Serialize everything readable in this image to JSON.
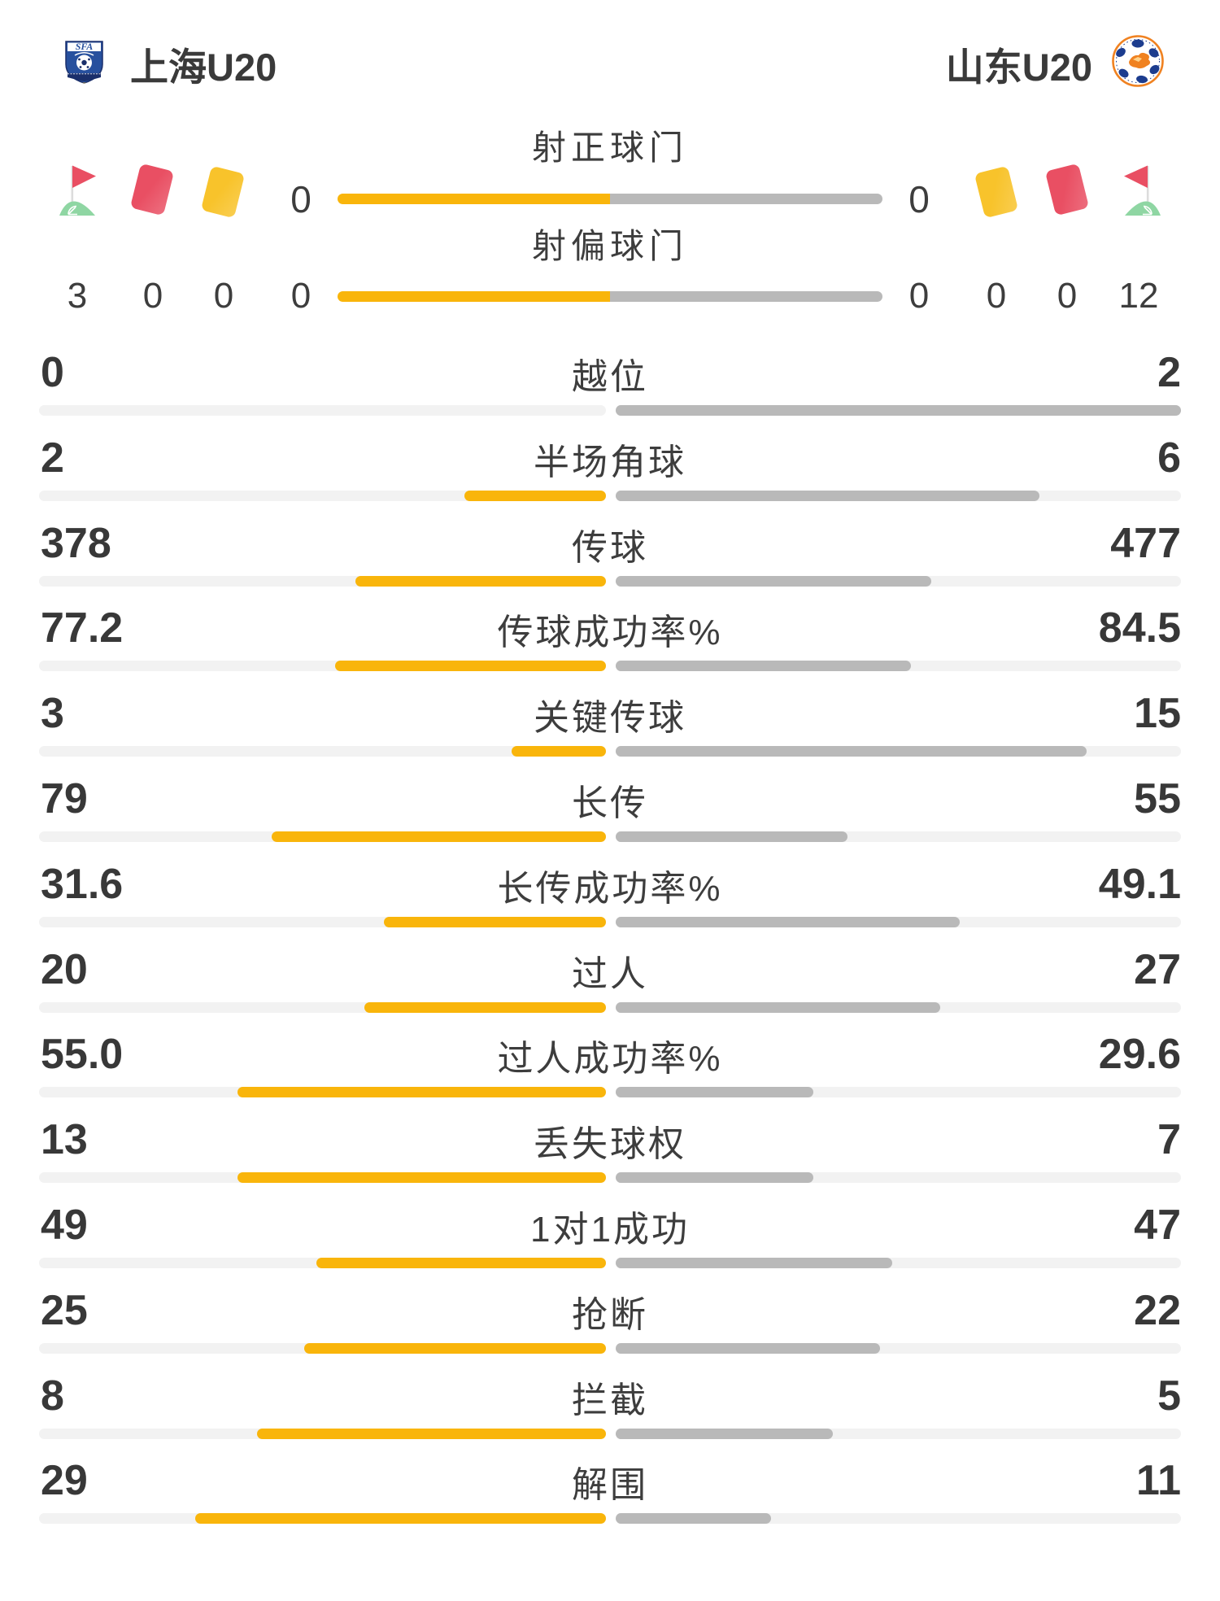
{
  "header": {
    "home_team": "上海U20",
    "away_team": "山东U20",
    "home_logo": "sfa-shield-logo",
    "away_logo": "shandong-fa-badge-logo"
  },
  "discipline": {
    "home": {
      "corner_flag": "3",
      "red_card": "0",
      "yellow_card": "0"
    },
    "away": {
      "yellow_card": "0",
      "red_card": "0",
      "corner_flag": "12"
    }
  },
  "shots": [
    {
      "label": "射正球门",
      "home": "0",
      "away": "0"
    },
    {
      "label": "射偏球门",
      "home": "0",
      "away": "0"
    }
  ],
  "stats": [
    {
      "label": "越位",
      "home": "0",
      "away": "2"
    },
    {
      "label": "半场角球",
      "home": "2",
      "away": "6"
    },
    {
      "label": "传球",
      "home": "378",
      "away": "477"
    },
    {
      "label": "传球成功率%",
      "home": "77.2",
      "away": "84.5"
    },
    {
      "label": "关键传球",
      "home": "3",
      "away": "15"
    },
    {
      "label": "长传",
      "home": "79",
      "away": "55"
    },
    {
      "label": "长传成功率%",
      "home": "31.6",
      "away": "49.1"
    },
    {
      "label": "过人",
      "home": "20",
      "away": "27"
    },
    {
      "label": "过人成功率%",
      "home": "55.0",
      "away": "29.6"
    },
    {
      "label": "丢失球权",
      "home": "13",
      "away": "7"
    },
    {
      "label": "1对1成功",
      "home": "49",
      "away": "47"
    },
    {
      "label": "抢断",
      "home": "25",
      "away": "22"
    },
    {
      "label": "拦截",
      "home": "8",
      "away": "5"
    },
    {
      "label": "解围",
      "home": "29",
      "away": "11"
    }
  ],
  "colors": {
    "accent_yellow": "#f9b50b",
    "fill_gray": "#b9b9b9",
    "track_gray": "#f2f2f2",
    "text_dark": "#3a3a3a",
    "card_red": "#e94f63",
    "card_yellow": "#f8c32b",
    "flag_red": "#e94f63",
    "flag_green": "#8fd6a3",
    "sfa_blue": "#27509e",
    "badge_orange": "#f08221",
    "badge_navy": "#1c3c8e"
  },
  "chart_data": {
    "type": "bar",
    "categories": [
      "射正球门",
      "射偏球门",
      "越位",
      "半场角球",
      "传球",
      "传球成功率%",
      "关键传球",
      "长传",
      "长传成功率%",
      "过人",
      "过人成功率%",
      "丢失球权",
      "1对1成功",
      "抢断",
      "拦截",
      "解围"
    ],
    "series": [
      {
        "name": "上海U20",
        "values": [
          0,
          0,
          0,
          2,
          378,
          77.2,
          3,
          79,
          31.6,
          20,
          55.0,
          13,
          49,
          25,
          8,
          29
        ]
      },
      {
        "name": "山东U20",
        "values": [
          0,
          0,
          2,
          6,
          477,
          84.5,
          15,
          55,
          49.1,
          27,
          29.6,
          7,
          47,
          22,
          5,
          11
        ]
      }
    ],
    "extra_counters": {
      "corners": [
        3,
        12
      ],
      "red_cards": [
        0,
        0
      ],
      "yellow_cards": [
        0,
        0
      ]
    },
    "title": "",
    "xlabel": "",
    "ylabel": "",
    "legend_position": "top",
    "bar_fill_rule": "value / (home+away), anchored at center, growing outward"
  }
}
